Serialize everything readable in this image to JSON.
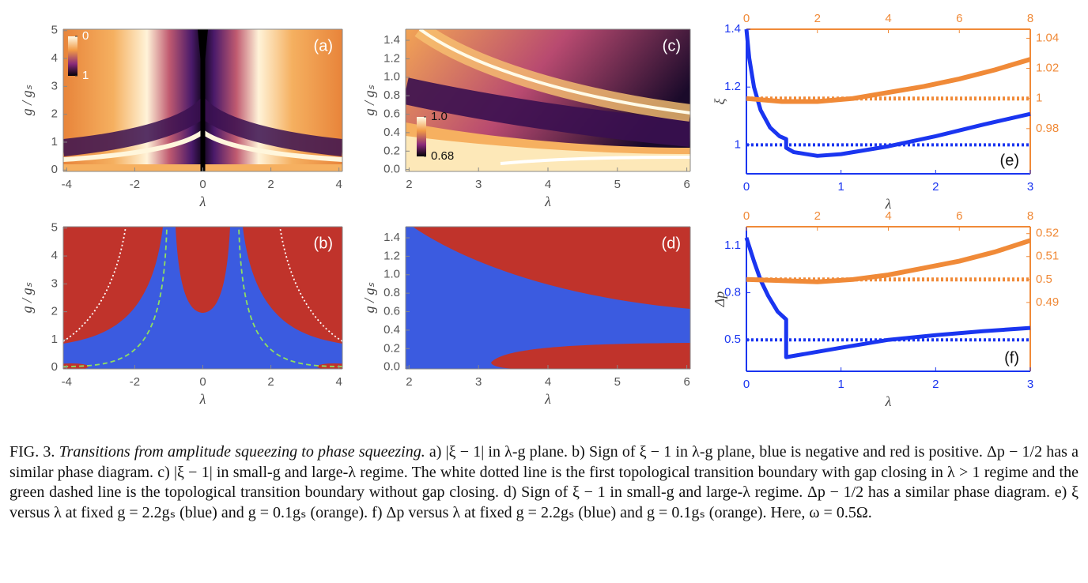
{
  "chart_data": [
    {
      "type": "heatmap",
      "title": "(a)",
      "xlabel": "λ",
      "ylabel": "g / gₛ",
      "xlim": [
        -4.1,
        4.1
      ],
      "xticks": [
        -4,
        -2,
        0,
        2,
        4
      ],
      "ylim": [
        -0.05,
        5.05
      ],
      "yticks": [
        0,
        1,
        2,
        3,
        4,
        5
      ],
      "colorbar": {
        "lim": [
          0,
          1
        ],
        "ticks": [
          0,
          1
        ]
      }
    },
    {
      "type": "heatmap",
      "title": "(b)",
      "xlabel": "λ",
      "ylabel": "g / gₛ",
      "xlim": [
        -4.1,
        4.1
      ],
      "xticks": [
        -4,
        -2,
        0,
        2,
        4
      ],
      "ylim": [
        -0.05,
        5.05
      ],
      "yticks": [
        0,
        1,
        2,
        3,
        4,
        5
      ]
    },
    {
      "type": "heatmap",
      "title": "(c)",
      "xlabel": "λ",
      "ylabel": "g / gₛ",
      "xlim": [
        1.95,
        6.05
      ],
      "xticks": [
        2,
        3,
        4,
        5,
        6
      ],
      "ylim": [
        -0.02,
        1.52
      ],
      "yticks": [
        {
          "value": 0,
          "label": "0.0"
        },
        0.2,
        0.4,
        0.6,
        0.8,
        {
          "value": 1,
          "label": "1.0"
        },
        1.2,
        1.4
      ],
      "colorbar": {
        "lim": [
          1,
          0.68
        ],
        "ticks": [
          {
            "value": 1,
            "label": "1.0"
          },
          0.68
        ]
      }
    },
    {
      "type": "heatmap",
      "title": "(d)",
      "xlabel": "λ",
      "ylabel": "g / gₛ",
      "xlim": [
        1.95,
        6.05
      ],
      "xticks": [
        2,
        3,
        4,
        5,
        6
      ],
      "ylim": [
        -0.02,
        1.52
      ],
      "yticks": [
        {
          "value": 0,
          "label": "0.0"
        },
        0.2,
        0.4,
        0.6,
        0.8,
        {
          "value": 1,
          "label": "1.0"
        },
        1.2,
        1.4
      ]
    },
    {
      "type": "line",
      "title": "(e)",
      "xlabel": "λ",
      "ylabel": "ξ",
      "xlim": [
        0,
        3
      ],
      "xticks": [
        0,
        1,
        2,
        3
      ],
      "x2lim": [
        0,
        8
      ],
      "x2ticks": [
        0,
        2,
        4,
        6,
        8
      ],
      "ylim": [
        0.9,
        1.4
      ],
      "yticks": [
        1,
        1.2,
        1.4
      ],
      "y2lim": [
        0.95,
        1.046
      ],
      "y2ticks": [
        0.98,
        1,
        1.02,
        1.04
      ],
      "series": [
        {
          "color": "#1a35f0",
          "x": [
            0,
            0.03,
            0.08,
            0.15,
            0.25,
            0.35,
            0.42,
            0.42,
            0.5,
            0.75,
            1,
            1.5,
            2,
            2.5,
            3
          ],
          "values": [
            1.4,
            1.3,
            1.2,
            1.12,
            1.06,
            1.03,
            1.02,
            0.99,
            0.975,
            0.962,
            0.968,
            0.995,
            1.03,
            1.07,
            1.107
          ]
        },
        {
          "color": "#f08a38",
          "axis": "y2",
          "xaxis": "x2",
          "x": [
            0,
            1,
            2,
            3,
            4,
            5,
            6,
            7,
            8
          ],
          "values": [
            1.0,
            0.998,
            0.998,
            1.0,
            1.004,
            1.008,
            1.013,
            1.019,
            1.026
          ]
        }
      ],
      "hlines": [
        {
          "value": 1,
          "color": "#1a35f0"
        },
        {
          "value": 1,
          "axis": "y2",
          "color": "#f08a38"
        }
      ]
    },
    {
      "type": "line",
      "title": "(f)",
      "xlabel": "λ",
      "ylabel": "Δp",
      "xlim": [
        0,
        3
      ],
      "xticks": [
        0,
        1,
        2,
        3
      ],
      "x2lim": [
        0,
        8
      ],
      "x2ticks": [
        0,
        2,
        4,
        6,
        8
      ],
      "ylim": [
        0.3,
        1.22
      ],
      "yticks": [
        0.5,
        0.8,
        1.1
      ],
      "y2lim": [
        0.46,
        0.523
      ],
      "y2ticks": [
        0.49,
        0.5,
        0.51,
        0.52
      ],
      "series": [
        {
          "color": "#1a35f0",
          "x": [
            0,
            0.08,
            0.15,
            0.23,
            0.33,
            0.42,
            0.42,
            1,
            1.5,
            2,
            2.5,
            3
          ],
          "values": [
            1.15,
            1.0,
            0.88,
            0.78,
            0.68,
            0.63,
            0.39,
            0.45,
            0.5,
            0.53,
            0.555,
            0.576
          ]
        },
        {
          "color": "#f08a38",
          "axis": "y2",
          "xaxis": "x2",
          "x": [
            0,
            1,
            2,
            3,
            4,
            5,
            6,
            7,
            8
          ],
          "values": [
            0.5,
            0.4995,
            0.499,
            0.5,
            0.502,
            0.505,
            0.508,
            0.512,
            0.517
          ]
        }
      ],
      "hlines": [
        {
          "value": 0.5,
          "color": "#1a35f0"
        },
        {
          "value": 0.5,
          "axis": "y2",
          "color": "#f08a38"
        }
      ]
    }
  ],
  "caption": {
    "label": "FIG. 3.",
    "title": "Transitions from amplitude squeezing to phase squeezing.",
    "text": "a) |ξ − 1| in λ-g plane. b) Sign of ξ − 1 in λ-g plane, blue is negative and red is positive. Δp − 1/2 has a similar phase diagram. c) |ξ − 1| in small-g and large-λ regime. The white dotted line is the first topological transition boundary with gap closing in λ > 1 regime and the green dashed line is the topological transition boundary without gap closing. d) Sign of ξ − 1 in small-g and large-λ regime. Δp − 1/2 has a similar phase diagram. e) ξ versus λ at fixed g = 2.2gₛ (blue) and g = 0.1gₛ (orange). f) Δp versus λ at fixed g = 2.2gₛ (blue) and g = 0.1gₛ (orange). Here, ω = 0.5Ω."
  }
}
